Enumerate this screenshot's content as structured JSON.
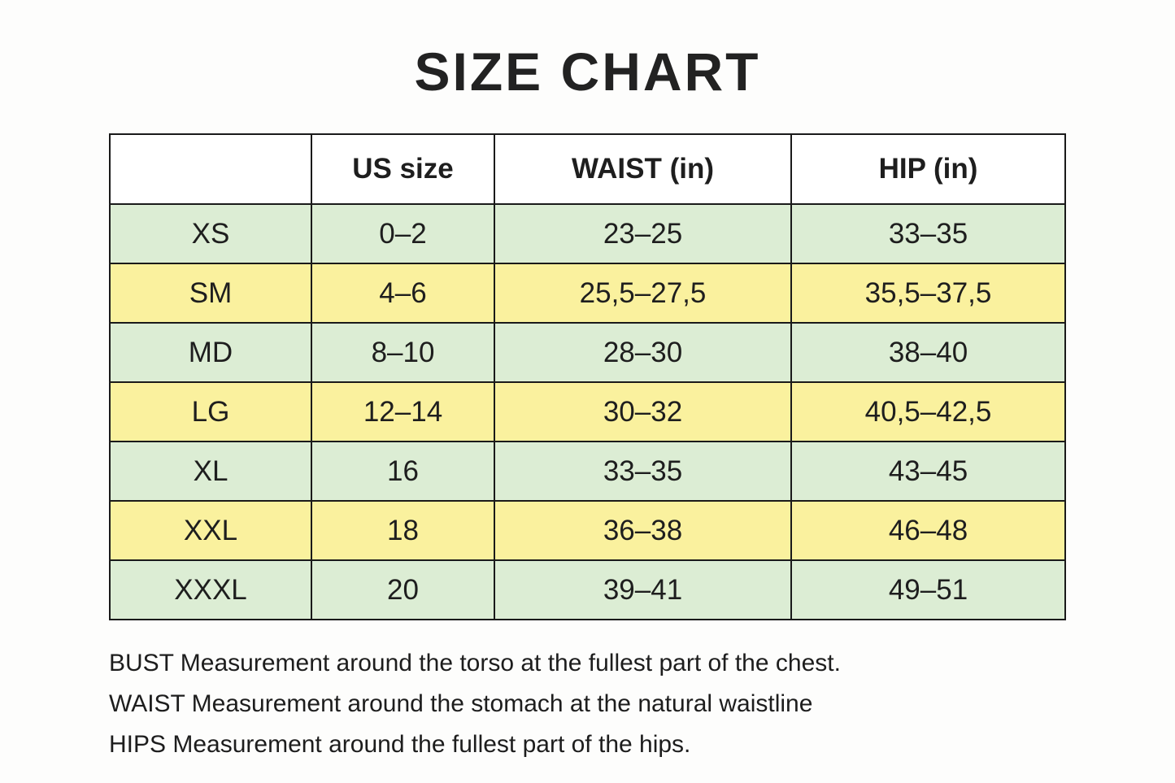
{
  "title": "SIZE CHART",
  "table": {
    "headers": [
      "US size",
      "WAIST (in)",
      "HIP (in)"
    ],
    "rows": [
      {
        "size": "XS",
        "us": "0–2",
        "waist": "23–25",
        "hip": "33–35",
        "tone": "green"
      },
      {
        "size": "SM",
        "us": "4–6",
        "waist": "25,5–27,5",
        "hip": "35,5–37,5",
        "tone": "yellow"
      },
      {
        "size": "MD",
        "us": "8–10",
        "waist": "28–30",
        "hip": "38–40",
        "tone": "green"
      },
      {
        "size": "LG",
        "us": "12–14",
        "waist": "30–32",
        "hip": "40,5–42,5",
        "tone": "yellow"
      },
      {
        "size": "XL",
        "us": "16",
        "waist": "33–35",
        "hip": "43–45",
        "tone": "green"
      },
      {
        "size": "XXL",
        "us": "18",
        "waist": "36–38",
        "hip": "46–48",
        "tone": "yellow"
      },
      {
        "size": "XXXL",
        "us": "20",
        "waist": "39–41",
        "hip": "49–51",
        "tone": "green"
      }
    ]
  },
  "notes": [
    "BUST Measurement around the torso at the fullest part of the chest.",
    "WAIST Measurement around the stomach at the natural waistline",
    "HIPS Measurement around the fullest part of the hips."
  ],
  "colors": {
    "row_green": "#dcedd4",
    "row_yellow": "#faf19e",
    "border": "#1a1a1a",
    "text": "#1e1e1e",
    "background": "#fdfdfc"
  }
}
